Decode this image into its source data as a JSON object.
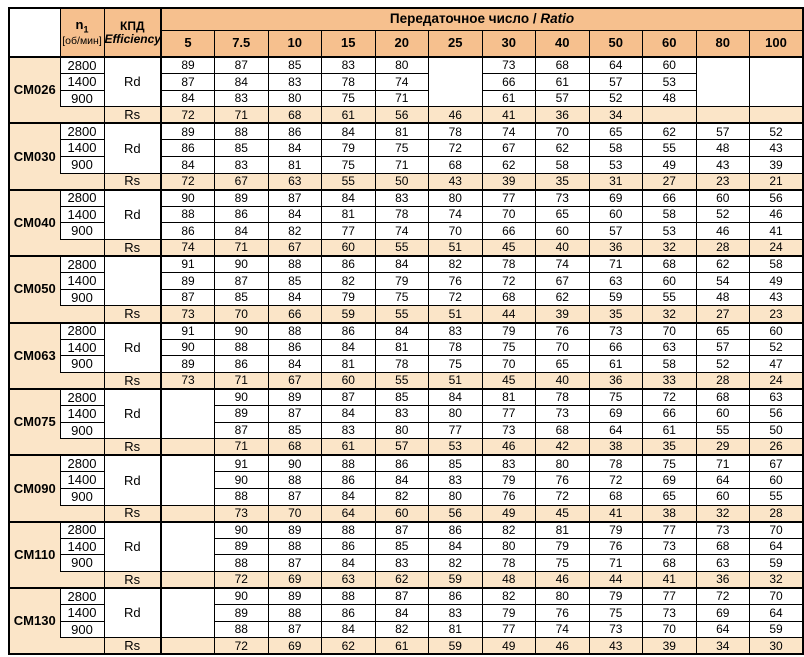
{
  "colors": {
    "header_bg": "#F6C08E",
    "band_bg": "#FBE5C8",
    "border": "#000000"
  },
  "table": {
    "n1": {
      "base": "n",
      "sub": "1",
      "unit": "[об/мин]"
    },
    "efficiency": {
      "ru": "КПД",
      "en": "Efficiency"
    },
    "ratio_header": {
      "ru": "Передаточное число / ",
      "en": "Ratio"
    },
    "ratio_columns": [
      "5",
      "7.5",
      "10",
      "15",
      "20",
      "25",
      "30",
      "40",
      "50",
      "60",
      "80",
      "100"
    ],
    "speeds": [
      "2800",
      "1400",
      "900"
    ],
    "rs_label": "Rs",
    "models": [
      {
        "name": "CM026",
        "rd": "Rd",
        "rd_rows": [
          [
            89,
            87,
            85,
            83,
            80,
            null,
            73,
            68,
            64,
            60,
            null,
            null
          ],
          [
            87,
            84,
            83,
            78,
            74,
            null,
            66,
            61,
            57,
            53,
            null,
            null
          ],
          [
            84,
            83,
            80,
            75,
            71,
            null,
            61,
            57,
            52,
            48,
            null,
            null
          ]
        ],
        "rs_row": [
          72,
          71,
          68,
          61,
          56,
          46,
          41,
          36,
          34,
          null,
          null,
          null
        ]
      },
      {
        "name": "CM030",
        "rd": "Rd",
        "rd_rows": [
          [
            89,
            88,
            86,
            84,
            81,
            78,
            74,
            70,
            65,
            62,
            57,
            52
          ],
          [
            86,
            85,
            84,
            79,
            75,
            72,
            67,
            62,
            58,
            55,
            48,
            43
          ],
          [
            84,
            83,
            81,
            75,
            71,
            68,
            62,
            58,
            53,
            49,
            43,
            39
          ]
        ],
        "rs_row": [
          72,
          67,
          63,
          55,
          50,
          43,
          39,
          35,
          31,
          27,
          23,
          21
        ]
      },
      {
        "name": "CM040",
        "rd": "Rd",
        "rd_rows": [
          [
            90,
            89,
            87,
            84,
            83,
            80,
            77,
            73,
            69,
            66,
            60,
            56
          ],
          [
            88,
            86,
            84,
            81,
            78,
            74,
            70,
            65,
            60,
            58,
            52,
            46
          ],
          [
            86,
            84,
            82,
            77,
            74,
            70,
            66,
            60,
            57,
            53,
            46,
            41
          ]
        ],
        "rs_row": [
          74,
          71,
          67,
          60,
          55,
          51,
          45,
          40,
          36,
          32,
          28,
          24
        ]
      },
      {
        "name": "CM050",
        "rd": "",
        "rd_rows": [
          [
            91,
            90,
            88,
            86,
            84,
            82,
            78,
            74,
            71,
            68,
            62,
            58
          ],
          [
            89,
            87,
            85,
            82,
            79,
            76,
            72,
            67,
            63,
            60,
            54,
            49
          ],
          [
            87,
            85,
            84,
            79,
            75,
            72,
            68,
            62,
            59,
            55,
            48,
            43
          ]
        ],
        "rs_row": [
          73,
          70,
          66,
          59,
          55,
          51,
          44,
          39,
          35,
          32,
          27,
          23
        ]
      },
      {
        "name": "CM063",
        "rd": "Rd",
        "rd_rows": [
          [
            91,
            90,
            88,
            86,
            84,
            83,
            79,
            76,
            73,
            70,
            65,
            60
          ],
          [
            90,
            88,
            86,
            84,
            81,
            78,
            75,
            70,
            66,
            63,
            57,
            52
          ],
          [
            89,
            86,
            84,
            81,
            78,
            75,
            70,
            65,
            61,
            58,
            52,
            47
          ]
        ],
        "rs_row": [
          73,
          71,
          67,
          60,
          55,
          51,
          45,
          40,
          36,
          33,
          28,
          24
        ]
      },
      {
        "name": "CM075",
        "rd": "Rd",
        "rd_rows": [
          [
            null,
            90,
            89,
            87,
            85,
            84,
            81,
            78,
            75,
            72,
            68,
            63
          ],
          [
            null,
            89,
            87,
            84,
            83,
            80,
            77,
            73,
            69,
            66,
            60,
            56
          ],
          [
            null,
            87,
            85,
            83,
            80,
            77,
            73,
            68,
            64,
            61,
            55,
            50
          ]
        ],
        "rs_row": [
          null,
          71,
          68,
          61,
          57,
          53,
          46,
          42,
          38,
          35,
          29,
          26
        ]
      },
      {
        "name": "CM090",
        "rd": "Rd",
        "rd_rows": [
          [
            null,
            91,
            90,
            88,
            86,
            85,
            83,
            80,
            78,
            75,
            71,
            67
          ],
          [
            null,
            90,
            88,
            86,
            84,
            83,
            79,
            76,
            72,
            69,
            64,
            60
          ],
          [
            null,
            88,
            87,
            84,
            82,
            80,
            76,
            72,
            68,
            65,
            60,
            55
          ]
        ],
        "rs_row": [
          null,
          73,
          70,
          64,
          60,
          56,
          49,
          45,
          41,
          38,
          32,
          28
        ]
      },
      {
        "name": "CM110",
        "rd": "Rd",
        "rd_rows": [
          [
            null,
            90,
            89,
            88,
            87,
            86,
            82,
            81,
            79,
            77,
            73,
            70
          ],
          [
            null,
            89,
            88,
            86,
            85,
            84,
            80,
            79,
            76,
            73,
            68,
            64
          ],
          [
            null,
            88,
            87,
            84,
            83,
            82,
            78,
            75,
            71,
            68,
            63,
            59
          ]
        ],
        "rs_row": [
          null,
          72,
          69,
          63,
          62,
          59,
          48,
          46,
          44,
          41,
          36,
          32
        ]
      },
      {
        "name": "CM130",
        "rd": "Rd",
        "rd_rows": [
          [
            null,
            90,
            89,
            88,
            87,
            86,
            82,
            80,
            79,
            77,
            72,
            70
          ],
          [
            null,
            89,
            88,
            86,
            84,
            83,
            79,
            76,
            75,
            73,
            69,
            64
          ],
          [
            null,
            88,
            87,
            84,
            82,
            81,
            77,
            74,
            73,
            70,
            64,
            59
          ]
        ],
        "rs_row": [
          null,
          72,
          69,
          62,
          61,
          59,
          49,
          46,
          43,
          39,
          34,
          30
        ]
      }
    ]
  }
}
